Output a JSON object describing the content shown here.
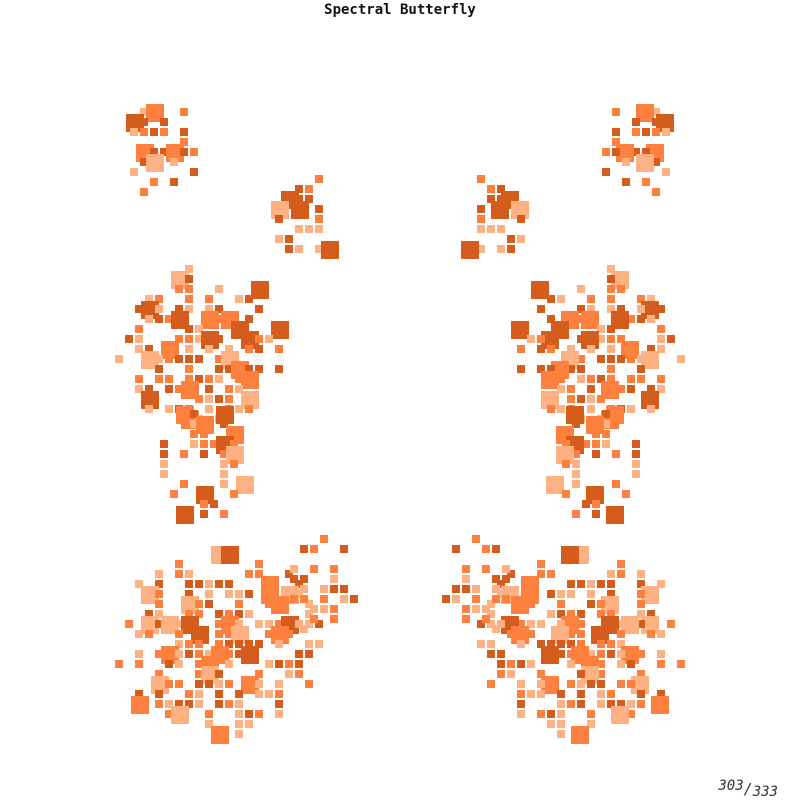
{
  "title": "Spectral Butterfly",
  "counter": {
    "current": "303",
    "separator": "/",
    "total": "333"
  },
  "palette": {
    "dark": "#d45d1e",
    "mid": "#fe803f",
    "light": "#feb183"
  }
}
